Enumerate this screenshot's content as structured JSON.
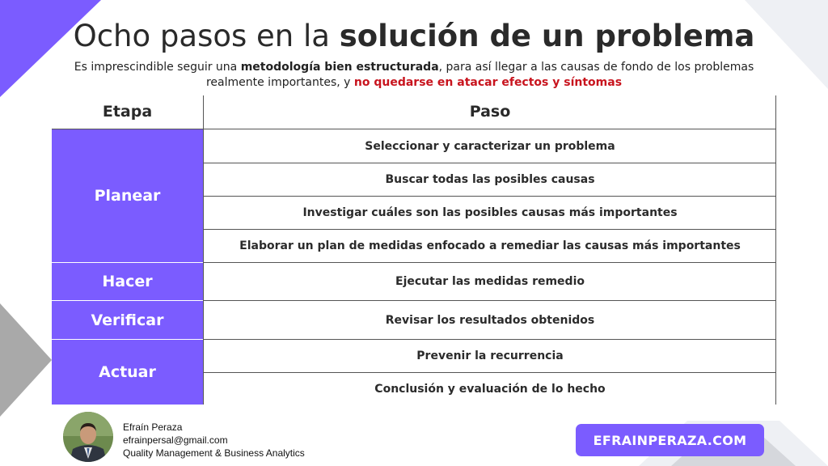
{
  "header": {
    "title_light": "Ocho pasos en la ",
    "title_bold": "solución de un problema",
    "subtitle": {
      "part1": "Es imprescindible seguir una ",
      "bold1": "metodología bien estructurada",
      "part2": ", para así llegar a las causas de fondo de los problemas realmente importantes, y ",
      "red": "no quedarse en atacar efectos y síntomas"
    }
  },
  "table": {
    "headers": {
      "stage": "Etapa",
      "step": "Paso"
    },
    "stages": [
      "Planear",
      "Hacer",
      "Verificar",
      "Actuar"
    ],
    "steps": [
      "Seleccionar y caracterizar un problema",
      "Buscar todas las posibles causas",
      "Investigar cuáles son las posibles causas más importantes",
      "Elaborar un plan de medidas enfocado a remediar las causas más importantes",
      "Ejecutar las medidas remedio",
      "Revisar los resultados obtenidos",
      "Prevenir la recurrencia",
      "Conclusión y evaluación de lo hecho"
    ]
  },
  "footer": {
    "author_name": "Efraín Peraza",
    "author_email": "efrainpersal@gmail.com",
    "author_role": "Quality Management & Business Analytics",
    "site_label": "EFRAINPERAZA.COM"
  },
  "colors": {
    "accent": "#7b5cff",
    "emphasis_red": "#c8141e",
    "decor_gray": "#a9a9a9",
    "decor_light": "#eef0f4"
  }
}
